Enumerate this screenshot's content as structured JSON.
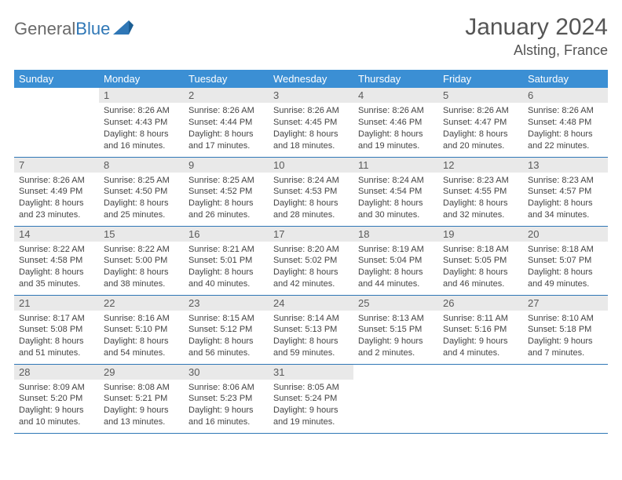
{
  "brand": {
    "part1": "General",
    "part2": "Blue"
  },
  "header": {
    "title": "January 2024",
    "location": "Alsting, France"
  },
  "style": {
    "header_bg": "#3b8fd4",
    "header_fg": "#ffffff",
    "daynum_bg": "#e9e9e9",
    "rule_color": "#2f77b6",
    "text_color": "#444444",
    "title_color": "#555555",
    "body_fontsize": 11,
    "title_fontsize": 30
  },
  "dow": [
    "Sunday",
    "Monday",
    "Tuesday",
    "Wednesday",
    "Thursday",
    "Friday",
    "Saturday"
  ],
  "label": {
    "sunrise": "Sunrise:",
    "sunset": "Sunset:",
    "daylight": "Daylight:"
  },
  "start_weekday": 1,
  "days": [
    {
      "n": 1,
      "rise": "8:26 AM",
      "set": "4:43 PM",
      "dl": "8 hours and 16 minutes."
    },
    {
      "n": 2,
      "rise": "8:26 AM",
      "set": "4:44 PM",
      "dl": "8 hours and 17 minutes."
    },
    {
      "n": 3,
      "rise": "8:26 AM",
      "set": "4:45 PM",
      "dl": "8 hours and 18 minutes."
    },
    {
      "n": 4,
      "rise": "8:26 AM",
      "set": "4:46 PM",
      "dl": "8 hours and 19 minutes."
    },
    {
      "n": 5,
      "rise": "8:26 AM",
      "set": "4:47 PM",
      "dl": "8 hours and 20 minutes."
    },
    {
      "n": 6,
      "rise": "8:26 AM",
      "set": "4:48 PM",
      "dl": "8 hours and 22 minutes."
    },
    {
      "n": 7,
      "rise": "8:26 AM",
      "set": "4:49 PM",
      "dl": "8 hours and 23 minutes."
    },
    {
      "n": 8,
      "rise": "8:25 AM",
      "set": "4:50 PM",
      "dl": "8 hours and 25 minutes."
    },
    {
      "n": 9,
      "rise": "8:25 AM",
      "set": "4:52 PM",
      "dl": "8 hours and 26 minutes."
    },
    {
      "n": 10,
      "rise": "8:24 AM",
      "set": "4:53 PM",
      "dl": "8 hours and 28 minutes."
    },
    {
      "n": 11,
      "rise": "8:24 AM",
      "set": "4:54 PM",
      "dl": "8 hours and 30 minutes."
    },
    {
      "n": 12,
      "rise": "8:23 AM",
      "set": "4:55 PM",
      "dl": "8 hours and 32 minutes."
    },
    {
      "n": 13,
      "rise": "8:23 AM",
      "set": "4:57 PM",
      "dl": "8 hours and 34 minutes."
    },
    {
      "n": 14,
      "rise": "8:22 AM",
      "set": "4:58 PM",
      "dl": "8 hours and 35 minutes."
    },
    {
      "n": 15,
      "rise": "8:22 AM",
      "set": "5:00 PM",
      "dl": "8 hours and 38 minutes."
    },
    {
      "n": 16,
      "rise": "8:21 AM",
      "set": "5:01 PM",
      "dl": "8 hours and 40 minutes."
    },
    {
      "n": 17,
      "rise": "8:20 AM",
      "set": "5:02 PM",
      "dl": "8 hours and 42 minutes."
    },
    {
      "n": 18,
      "rise": "8:19 AM",
      "set": "5:04 PM",
      "dl": "8 hours and 44 minutes."
    },
    {
      "n": 19,
      "rise": "8:18 AM",
      "set": "5:05 PM",
      "dl": "8 hours and 46 minutes."
    },
    {
      "n": 20,
      "rise": "8:18 AM",
      "set": "5:07 PM",
      "dl": "8 hours and 49 minutes."
    },
    {
      "n": 21,
      "rise": "8:17 AM",
      "set": "5:08 PM",
      "dl": "8 hours and 51 minutes."
    },
    {
      "n": 22,
      "rise": "8:16 AM",
      "set": "5:10 PM",
      "dl": "8 hours and 54 minutes."
    },
    {
      "n": 23,
      "rise": "8:15 AM",
      "set": "5:12 PM",
      "dl": "8 hours and 56 minutes."
    },
    {
      "n": 24,
      "rise": "8:14 AM",
      "set": "5:13 PM",
      "dl": "8 hours and 59 minutes."
    },
    {
      "n": 25,
      "rise": "8:13 AM",
      "set": "5:15 PM",
      "dl": "9 hours and 2 minutes."
    },
    {
      "n": 26,
      "rise": "8:11 AM",
      "set": "5:16 PM",
      "dl": "9 hours and 4 minutes."
    },
    {
      "n": 27,
      "rise": "8:10 AM",
      "set": "5:18 PM",
      "dl": "9 hours and 7 minutes."
    },
    {
      "n": 28,
      "rise": "8:09 AM",
      "set": "5:20 PM",
      "dl": "9 hours and 10 minutes."
    },
    {
      "n": 29,
      "rise": "8:08 AM",
      "set": "5:21 PM",
      "dl": "9 hours and 13 minutes."
    },
    {
      "n": 30,
      "rise": "8:06 AM",
      "set": "5:23 PM",
      "dl": "9 hours and 16 minutes."
    },
    {
      "n": 31,
      "rise": "8:05 AM",
      "set": "5:24 PM",
      "dl": "9 hours and 19 minutes."
    }
  ]
}
